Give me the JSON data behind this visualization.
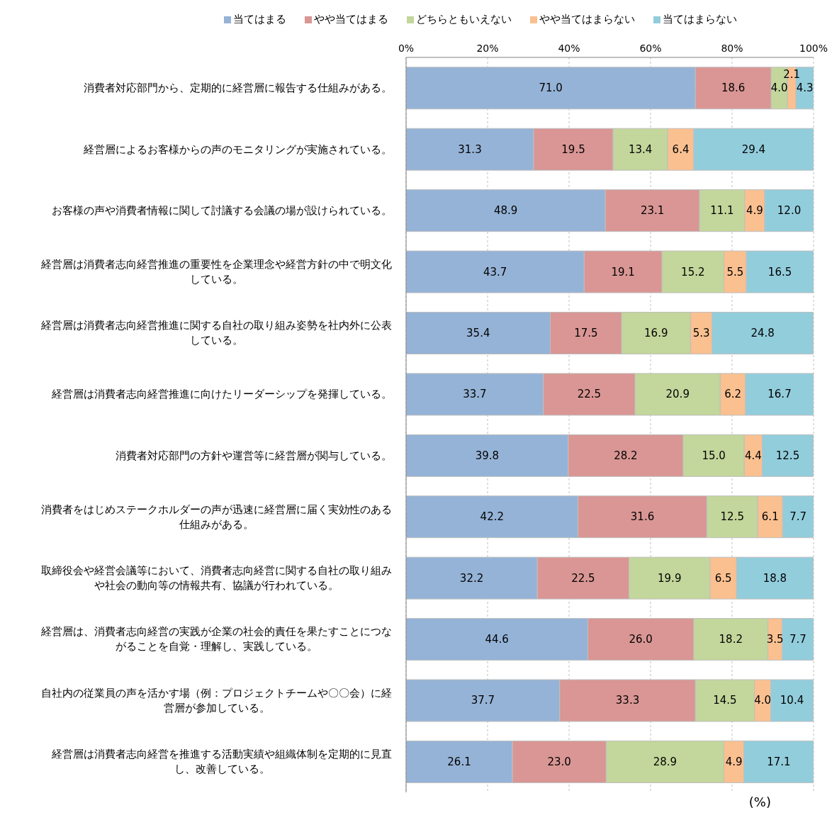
{
  "chart_data": {
    "type": "bar",
    "orientation": "horizontal",
    "stacked": true,
    "categories": [
      "消費者対応部門から、定期的に経営層に報告する仕組みがある。",
      "経営層によるお客様からの声のモニタリングが実施されている。",
      "お客様の声や消費者情報に関して討議する会議の場が設けられている。",
      "経営層は消費者志向経営推進の重要性を企業理念や経営方針の中で明文化している。",
      "経営層は消費者志向経営推進に関する自社の取り組み姿勢を社内外に公表している。",
      "経営層は消費者志向経営推進に向けたリーダーシップを発揮している。",
      "消費者対応部門の方針や運営等に経営層が関与している。",
      "消費者をはじめステークホルダーの声が迅速に経営層に届く実効性のある仕組みがある。",
      "取締役会や経営会議等において、消費者志向経営に関する自社の取り組みや社会の動向等の情報共有、協議が行われている。",
      "経営層は、消費者志向経営の実践が企業の社会的責任を果たすことにつながることを自覚・理解し、実践している。",
      "自社内の従業員の声を活かす場（例：プロジェクトチームや〇〇会）に経営層が参加している。",
      "経営層は消費者志向経営を推進する活動実績や組織体制を定期的に見直し、改善している。"
    ],
    "series": [
      {
        "name": "当てはまる",
        "color": "#95b3d7",
        "values": [
          71.0,
          31.3,
          48.9,
          43.7,
          35.4,
          33.7,
          39.8,
          42.2,
          32.2,
          44.6,
          37.7,
          26.1
        ],
        "value_labels": [
          "71.0",
          "31.3",
          "48.9",
          "43.7",
          "35.4",
          "33.7",
          "39.8",
          "42.2",
          "32.2",
          "44.6",
          "37.7",
          "26.1"
        ]
      },
      {
        "name": "やや当てはまる",
        "color": "#d99694",
        "values": [
          18.6,
          19.5,
          23.1,
          19.1,
          17.5,
          22.5,
          28.2,
          31.6,
          22.5,
          26.0,
          33.3,
          23.0
        ],
        "value_labels": [
          "18.6",
          "19.5",
          "23.1",
          "19.1",
          "17.5",
          "22.5",
          "28.2",
          "31.6",
          "22.5",
          "26.0",
          "33.3",
          "23.0"
        ]
      },
      {
        "name": "どちらともいえない",
        "color": "#c3d69b",
        "values": [
          4.0,
          13.4,
          11.1,
          15.2,
          16.9,
          20.9,
          15.0,
          12.5,
          19.9,
          18.2,
          14.5,
          28.9
        ],
        "value_labels": [
          "4.0",
          "13.4",
          "11.1",
          "15.2",
          "16.9",
          "20.9",
          "15.0",
          "12.5",
          "19.9",
          "18.2",
          "14.5",
          "28.9"
        ]
      },
      {
        "name": "やや当てはまらない",
        "color": "#fac090",
        "values": [
          2.1,
          6.4,
          4.9,
          5.5,
          5.3,
          6.2,
          4.4,
          6.1,
          6.5,
          3.5,
          4.0,
          4.9
        ],
        "value_labels": [
          "2.1",
          "6.4",
          "4.9",
          "5.5",
          "5.3",
          "6.2",
          "4.4",
          "6.1",
          "6.5",
          "3.5",
          "4.0",
          "4.9"
        ]
      },
      {
        "name": "当てはまらない",
        "color": "#92cddc",
        "values": [
          4.3,
          29.4,
          12.0,
          16.5,
          24.8,
          16.7,
          12.5,
          7.7,
          18.8,
          7.7,
          10.4,
          17.1
        ],
        "value_labels": [
          "4.3",
          "29.4",
          "12.0",
          "16.5",
          "24.8",
          "16.7",
          "12.5",
          "7.7",
          "18.8",
          "7.7",
          "10.4",
          "17.1"
        ]
      }
    ],
    "xlim": [
      0,
      100
    ],
    "xticks": [
      {
        "value": 0,
        "label": "0%"
      },
      {
        "value": 20,
        "label": "20%"
      },
      {
        "value": 40,
        "label": "40%"
      },
      {
        "value": 60,
        "label": "60%"
      },
      {
        "value": 80,
        "label": "80%"
      },
      {
        "value": 100,
        "label": "100%"
      }
    ],
    "grid": "x",
    "legend": "top",
    "annotations": [
      "(%)"
    ]
  }
}
